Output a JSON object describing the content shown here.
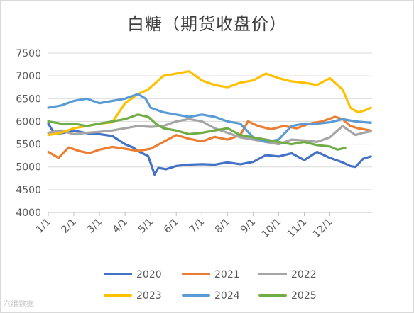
{
  "chart_data": {
    "type": "line",
    "title": "白糖（期货收盘价）",
    "x_ticks": [
      "1/1",
      "2/1",
      "3/1",
      "4/1",
      "5/1",
      "6/1",
      "7/1",
      "8/1",
      "9/1",
      "10/1",
      "11/1",
      "12/1"
    ],
    "ylim": [
      4000,
      7500
    ],
    "y_ticks": [
      4000,
      4500,
      5000,
      5500,
      6000,
      6500,
      7000,
      7500
    ],
    "grid": true,
    "legend_position": "bottom",
    "series": [
      {
        "name": "2020",
        "color": "#4472C4",
        "points": [
          [
            0,
            5950
          ],
          [
            0.25,
            5720
          ],
          [
            0.6,
            5750
          ],
          [
            1.0,
            5800
          ],
          [
            1.5,
            5740
          ],
          [
            2.0,
            5720
          ],
          [
            2.5,
            5680
          ],
          [
            3.0,
            5500
          ],
          [
            3.3,
            5430
          ],
          [
            3.6,
            5320
          ],
          [
            3.9,
            5240
          ],
          [
            4.05,
            5000
          ],
          [
            4.15,
            4830
          ],
          [
            4.3,
            4980
          ],
          [
            4.6,
            4950
          ],
          [
            5.0,
            5020
          ],
          [
            5.5,
            5050
          ],
          [
            6.0,
            5060
          ],
          [
            6.5,
            5050
          ],
          [
            7.0,
            5100
          ],
          [
            7.5,
            5060
          ],
          [
            8.0,
            5110
          ],
          [
            8.5,
            5260
          ],
          [
            9.0,
            5230
          ],
          [
            9.5,
            5300
          ],
          [
            10.0,
            5150
          ],
          [
            10.5,
            5330
          ],
          [
            11.0,
            5200
          ],
          [
            11.5,
            5100
          ],
          [
            11.8,
            5020
          ],
          [
            12.0,
            5000
          ],
          [
            12.3,
            5180
          ],
          [
            12.6,
            5230
          ]
        ]
      },
      {
        "name": "2021",
        "color": "#ED7D31",
        "points": [
          [
            0,
            5330
          ],
          [
            0.4,
            5200
          ],
          [
            0.8,
            5430
          ],
          [
            1.2,
            5350
          ],
          [
            1.6,
            5300
          ],
          [
            2.0,
            5380
          ],
          [
            2.5,
            5440
          ],
          [
            3.0,
            5400
          ],
          [
            3.5,
            5350
          ],
          [
            4.0,
            5400
          ],
          [
            4.5,
            5550
          ],
          [
            5.0,
            5700
          ],
          [
            5.5,
            5620
          ],
          [
            6.0,
            5560
          ],
          [
            6.5,
            5660
          ],
          [
            7.0,
            5600
          ],
          [
            7.5,
            5700
          ],
          [
            7.8,
            6000
          ],
          [
            8.2,
            5900
          ],
          [
            8.7,
            5830
          ],
          [
            9.2,
            5900
          ],
          [
            9.7,
            5850
          ],
          [
            10.2,
            5950
          ],
          [
            10.7,
            6000
          ],
          [
            11.2,
            6100
          ],
          [
            11.5,
            6050
          ],
          [
            11.8,
            5900
          ],
          [
            12.1,
            5850
          ],
          [
            12.6,
            5800
          ]
        ]
      },
      {
        "name": "2022",
        "color": "#A5A5A5",
        "points": [
          [
            0,
            5750
          ],
          [
            0.5,
            5800
          ],
          [
            1.0,
            5720
          ],
          [
            1.5,
            5750
          ],
          [
            2.0,
            5770
          ],
          [
            2.5,
            5800
          ],
          [
            3.0,
            5850
          ],
          [
            3.5,
            5900
          ],
          [
            4.0,
            5880
          ],
          [
            4.5,
            5900
          ],
          [
            5.0,
            6000
          ],
          [
            5.5,
            6050
          ],
          [
            6.0,
            6000
          ],
          [
            6.5,
            5850
          ],
          [
            7.0,
            5750
          ],
          [
            7.5,
            5650
          ],
          [
            8.0,
            5600
          ],
          [
            8.5,
            5550
          ],
          [
            9.0,
            5500
          ],
          [
            9.5,
            5600
          ],
          [
            10.0,
            5580
          ],
          [
            10.5,
            5550
          ],
          [
            11.0,
            5650
          ],
          [
            11.5,
            5900
          ],
          [
            12.0,
            5700
          ],
          [
            12.3,
            5750
          ],
          [
            12.6,
            5780
          ]
        ]
      },
      {
        "name": "2023",
        "color": "#FFC000",
        "points": [
          [
            0,
            5700
          ],
          [
            0.5,
            5750
          ],
          [
            1.0,
            5850
          ],
          [
            1.5,
            5900
          ],
          [
            2.0,
            5950
          ],
          [
            2.5,
            5980
          ],
          [
            3.0,
            6400
          ],
          [
            3.5,
            6600
          ],
          [
            3.9,
            6700
          ],
          [
            4.2,
            6850
          ],
          [
            4.5,
            7000
          ],
          [
            5.0,
            7050
          ],
          [
            5.5,
            7100
          ],
          [
            6.0,
            6900
          ],
          [
            6.5,
            6800
          ],
          [
            7.0,
            6750
          ],
          [
            7.5,
            6850
          ],
          [
            8.0,
            6900
          ],
          [
            8.5,
            7050
          ],
          [
            9.0,
            6950
          ],
          [
            9.5,
            6880
          ],
          [
            10.0,
            6850
          ],
          [
            10.5,
            6800
          ],
          [
            11.0,
            6950
          ],
          [
            11.5,
            6700
          ],
          [
            11.8,
            6300
          ],
          [
            12.1,
            6200
          ],
          [
            12.4,
            6250
          ],
          [
            12.6,
            6300
          ]
        ]
      },
      {
        "name": "2024",
        "color": "#5B9BD5",
        "points": [
          [
            0,
            6300
          ],
          [
            0.5,
            6350
          ],
          [
            1.0,
            6450
          ],
          [
            1.5,
            6500
          ],
          [
            2.0,
            6400
          ],
          [
            2.5,
            6450
          ],
          [
            3.0,
            6500
          ],
          [
            3.5,
            6600
          ],
          [
            3.8,
            6500
          ],
          [
            4.0,
            6300
          ],
          [
            4.5,
            6200
          ],
          [
            5.0,
            6150
          ],
          [
            5.5,
            6100
          ],
          [
            6.0,
            6150
          ],
          [
            6.5,
            6100
          ],
          [
            7.0,
            6000
          ],
          [
            7.5,
            5950
          ],
          [
            8.0,
            5650
          ],
          [
            8.5,
            5550
          ],
          [
            9.0,
            5600
          ],
          [
            9.5,
            5900
          ],
          [
            10.0,
            5950
          ],
          [
            10.5,
            5950
          ],
          [
            11.0,
            5980
          ],
          [
            11.5,
            6050
          ],
          [
            12.0,
            6000
          ],
          [
            12.6,
            5970
          ]
        ]
      },
      {
        "name": "2025",
        "color": "#70AD47",
        "points": [
          [
            0,
            6000
          ],
          [
            0.5,
            5950
          ],
          [
            1.0,
            5950
          ],
          [
            1.5,
            5900
          ],
          [
            2.0,
            5950
          ],
          [
            2.5,
            6000
          ],
          [
            3.0,
            6050
          ],
          [
            3.5,
            6150
          ],
          [
            3.9,
            6100
          ],
          [
            4.2,
            5950
          ],
          [
            4.5,
            5850
          ],
          [
            5.0,
            5800
          ],
          [
            5.5,
            5720
          ],
          [
            6.0,
            5750
          ],
          [
            6.5,
            5800
          ],
          [
            7.0,
            5850
          ],
          [
            7.5,
            5700
          ],
          [
            8.0,
            5650
          ],
          [
            8.5,
            5600
          ],
          [
            9.0,
            5550
          ],
          [
            9.5,
            5500
          ],
          [
            10.0,
            5550
          ],
          [
            10.5,
            5480
          ],
          [
            11.0,
            5450
          ],
          [
            11.3,
            5380
          ],
          [
            11.6,
            5420
          ]
        ]
      }
    ]
  },
  "watermark": "六维数据"
}
